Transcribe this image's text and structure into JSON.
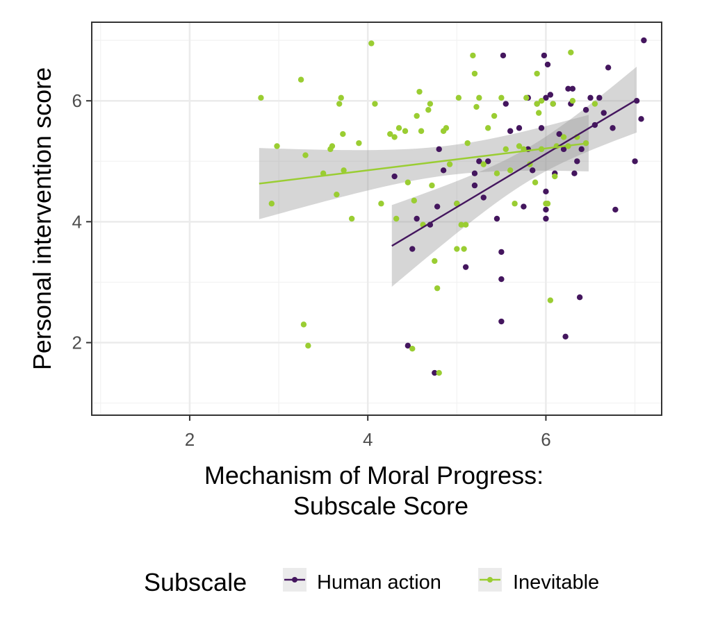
{
  "chart_data": {
    "type": "scatter",
    "title": "",
    "xlabel_lines": [
      "Mechanism of Moral Progress:",
      "Subscale Score"
    ],
    "ylabel": "Personal intervention score",
    "xlim": [
      0.9,
      7.3
    ],
    "ylim": [
      0.8,
      7.3
    ],
    "xticks": [
      2,
      4,
      6
    ],
    "yticks": [
      2,
      4,
      6
    ],
    "grid": true,
    "legend": {
      "title": "Subscale",
      "position": "bottom",
      "items": [
        {
          "label": "Human action",
          "color": "#44165e"
        },
        {
          "label": "Inevitable",
          "color": "#9acd32"
        }
      ]
    },
    "series": [
      {
        "name": "Human action",
        "color": "#44165e",
        "points": [
          [
            4.3,
            4.75
          ],
          [
            4.45,
            1.95
          ],
          [
            4.5,
            3.55
          ],
          [
            4.55,
            4.05
          ],
          [
            4.7,
            3.95
          ],
          [
            4.75,
            1.5
          ],
          [
            4.78,
            4.25
          ],
          [
            4.8,
            5.2
          ],
          [
            4.85,
            4.85
          ],
          [
            5.0,
            4.3
          ],
          [
            5.1,
            3.25
          ],
          [
            5.2,
            4.6
          ],
          [
            5.2,
            4.8
          ],
          [
            5.25,
            5.0
          ],
          [
            5.3,
            4.4
          ],
          [
            5.35,
            5.0
          ],
          [
            5.45,
            4.05
          ],
          [
            5.5,
            2.35
          ],
          [
            5.5,
            3.05
          ],
          [
            5.5,
            3.5
          ],
          [
            5.52,
            6.75
          ],
          [
            5.55,
            5.95
          ],
          [
            5.6,
            5.5
          ],
          [
            5.7,
            5.55
          ],
          [
            5.75,
            4.25
          ],
          [
            5.8,
            5.2
          ],
          [
            5.8,
            6.05
          ],
          [
            5.85,
            4.85
          ],
          [
            5.9,
            5.95
          ],
          [
            5.95,
            5.55
          ],
          [
            5.98,
            6.75
          ],
          [
            6.0,
            6.05
          ],
          [
            6.0,
            4.2
          ],
          [
            6.0,
            4.5
          ],
          [
            6.0,
            4.05
          ],
          [
            6.02,
            6.6
          ],
          [
            6.05,
            6.1
          ],
          [
            6.08,
            5.95
          ],
          [
            6.1,
            4.8
          ],
          [
            6.15,
            5.45
          ],
          [
            6.2,
            5.2
          ],
          [
            6.22,
            2.1
          ],
          [
            6.25,
            6.2
          ],
          [
            6.28,
            5.95
          ],
          [
            6.3,
            6.2
          ],
          [
            6.32,
            4.8
          ],
          [
            6.35,
            5.0
          ],
          [
            6.38,
            2.75
          ],
          [
            6.4,
            5.2
          ],
          [
            6.45,
            5.85
          ],
          [
            6.5,
            6.05
          ],
          [
            6.55,
            5.6
          ],
          [
            6.6,
            6.05
          ],
          [
            6.65,
            5.8
          ],
          [
            6.7,
            6.55
          ],
          [
            6.75,
            5.55
          ],
          [
            6.78,
            4.2
          ],
          [
            7.0,
            5.0
          ],
          [
            7.02,
            6.0
          ],
          [
            7.07,
            5.7
          ],
          [
            7.1,
            7.0
          ]
        ],
        "trend": {
          "x": [
            4.27,
            7.02
          ],
          "y": [
            3.6,
            6.02
          ]
        }
      },
      {
        "name": "Inevitable",
        "color": "#9acd32",
        "points": [
          [
            2.8,
            6.05
          ],
          [
            2.92,
            4.3
          ],
          [
            2.98,
            5.25
          ],
          [
            3.25,
            6.35
          ],
          [
            3.28,
            2.3
          ],
          [
            3.3,
            5.1
          ],
          [
            3.33,
            1.95
          ],
          [
            3.5,
            4.8
          ],
          [
            3.58,
            5.2
          ],
          [
            3.6,
            5.25
          ],
          [
            3.65,
            4.45
          ],
          [
            3.68,
            5.95
          ],
          [
            3.7,
            6.05
          ],
          [
            3.72,
            5.45
          ],
          [
            3.73,
            4.85
          ],
          [
            3.82,
            4.05
          ],
          [
            3.9,
            5.3
          ],
          [
            4.04,
            6.95
          ],
          [
            4.08,
            5.95
          ],
          [
            4.15,
            4.3
          ],
          [
            4.25,
            5.45
          ],
          [
            4.3,
            5.4
          ],
          [
            4.32,
            4.05
          ],
          [
            4.35,
            5.55
          ],
          [
            4.42,
            5.5
          ],
          [
            4.45,
            4.65
          ],
          [
            4.5,
            1.9
          ],
          [
            4.52,
            4.35
          ],
          [
            4.55,
            5.75
          ],
          [
            4.58,
            6.15
          ],
          [
            4.6,
            5.5
          ],
          [
            4.62,
            3.95
          ],
          [
            4.68,
            5.85
          ],
          [
            4.7,
            5.95
          ],
          [
            4.72,
            4.6
          ],
          [
            4.75,
            3.35
          ],
          [
            4.78,
            2.9
          ],
          [
            4.8,
            1.5
          ],
          [
            4.85,
            5.5
          ],
          [
            4.88,
            5.55
          ],
          [
            4.92,
            4.95
          ],
          [
            5.0,
            4.3
          ],
          [
            5.0,
            3.55
          ],
          [
            5.02,
            6.05
          ],
          [
            5.05,
            3.95
          ],
          [
            5.08,
            3.55
          ],
          [
            5.1,
            3.95
          ],
          [
            5.12,
            5.3
          ],
          [
            5.18,
            6.75
          ],
          [
            5.2,
            6.45
          ],
          [
            5.22,
            5.9
          ],
          [
            5.25,
            6.05
          ],
          [
            5.3,
            4.95
          ],
          [
            5.35,
            5.55
          ],
          [
            5.42,
            5.75
          ],
          [
            5.45,
            4.8
          ],
          [
            5.5,
            6.05
          ],
          [
            5.55,
            5.2
          ],
          [
            5.6,
            4.85
          ],
          [
            5.65,
            4.3
          ],
          [
            5.7,
            5.25
          ],
          [
            5.75,
            5.2
          ],
          [
            5.78,
            6.05
          ],
          [
            5.82,
            4.95
          ],
          [
            5.88,
            4.65
          ],
          [
            5.9,
            6.45
          ],
          [
            5.9,
            5.95
          ],
          [
            5.92,
            5.8
          ],
          [
            5.95,
            6.0
          ],
          [
            5.95,
            5.2
          ],
          [
            6.0,
            4.3
          ],
          [
            6.02,
            4.3
          ],
          [
            6.05,
            2.7
          ],
          [
            6.08,
            5.95
          ],
          [
            6.1,
            4.75
          ],
          [
            6.12,
            5.25
          ],
          [
            6.2,
            5.4
          ],
          [
            6.25,
            5.25
          ],
          [
            6.28,
            6.8
          ],
          [
            6.3,
            6.0
          ],
          [
            6.35,
            5.4
          ],
          [
            6.45,
            5.3
          ],
          [
            6.55,
            5.95
          ]
        ],
        "trend": {
          "x": [
            2.78,
            6.48
          ],
          "y": [
            4.63,
            5.3
          ]
        }
      }
    ]
  }
}
